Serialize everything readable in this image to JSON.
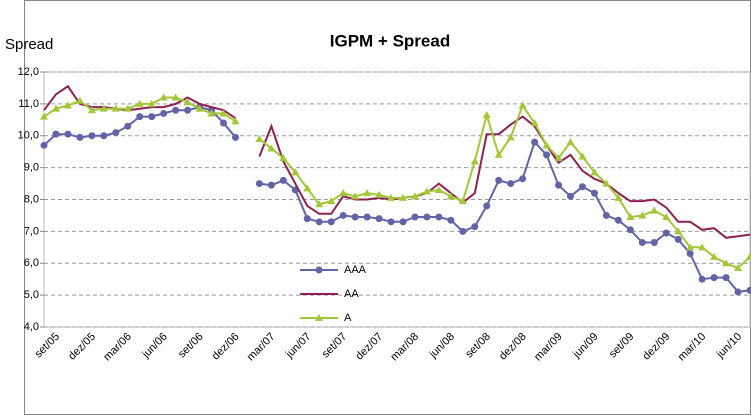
{
  "chart_data": {
    "type": "line",
    "title": "IGPM + Spread",
    "y_label": "Spread",
    "categories": [
      null,
      "set/05",
      null,
      null,
      "dez/05",
      null,
      null,
      "mar/06",
      null,
      null,
      "jun/06",
      null,
      null,
      "set/06",
      null,
      null,
      "dez/06",
      null,
      null,
      "mar/07",
      null,
      null,
      "jun/07",
      null,
      null,
      "set/07",
      null,
      null,
      "dez/07",
      null,
      null,
      "mar/08",
      null,
      null,
      "jun/08",
      null,
      null,
      "set/08",
      null,
      null,
      "dez/08",
      null,
      null,
      "mar/09",
      null,
      null,
      "jun/09",
      null,
      null,
      "set/09",
      null,
      null,
      "dez/09",
      null,
      null,
      "mar/10",
      null,
      null,
      "jun/10",
      null
    ],
    "series": [
      {
        "name": "AAA",
        "color": "#6264a7",
        "marker": "circle",
        "values": [
          9.7,
          10.05,
          10.05,
          9.95,
          10.0,
          10.0,
          10.1,
          10.3,
          10.6,
          10.6,
          10.7,
          10.8,
          10.8,
          10.9,
          10.8,
          10.4,
          9.95,
          null,
          8.5,
          8.45,
          8.6,
          8.3,
          7.4,
          7.3,
          7.3,
          7.5,
          7.45,
          7.45,
          7.4,
          7.3,
          7.3,
          7.45,
          7.45,
          7.45,
          7.35,
          7.0,
          7.15,
          7.8,
          8.6,
          8.5,
          8.65,
          9.8,
          9.4,
          8.45,
          8.1,
          8.4,
          8.2,
          7.5,
          7.35,
          7.05,
          6.65,
          6.65,
          6.95,
          6.75,
          6.3,
          5.5,
          5.55,
          5.55,
          5.1,
          5.15
        ]
      },
      {
        "name": "AA",
        "color": "#8e2151",
        "marker": "none",
        "values": [
          10.8,
          11.3,
          11.55,
          11.0,
          10.9,
          10.9,
          10.85,
          10.8,
          10.85,
          10.9,
          10.9,
          11.0,
          11.2,
          11.0,
          10.9,
          10.8,
          10.55,
          null,
          9.35,
          10.3,
          9.2,
          8.5,
          7.8,
          7.55,
          7.55,
          8.1,
          8.0,
          8.0,
          8.05,
          8.0,
          8.05,
          8.1,
          8.2,
          8.5,
          8.2,
          7.9,
          8.2,
          10.05,
          10.05,
          10.35,
          10.6,
          10.3,
          9.7,
          9.15,
          9.4,
          8.9,
          8.65,
          8.5,
          8.2,
          7.95,
          7.95,
          8.0,
          7.75,
          7.3,
          7.3,
          7.05,
          7.1,
          6.8,
          6.85,
          6.9
        ]
      },
      {
        "name": "A",
        "color": "#a4c639",
        "marker": "triangle",
        "values": [
          10.6,
          10.85,
          10.95,
          11.1,
          10.8,
          10.85,
          10.85,
          10.85,
          11.0,
          11.0,
          11.2,
          11.2,
          11.05,
          10.85,
          10.7,
          10.7,
          10.45,
          null,
          9.9,
          9.6,
          9.3,
          8.85,
          8.35,
          7.85,
          7.95,
          8.2,
          8.1,
          8.2,
          8.15,
          8.05,
          8.05,
          8.1,
          8.25,
          8.3,
          8.1,
          7.95,
          9.2,
          10.65,
          9.4,
          9.95,
          10.95,
          10.4,
          9.7,
          9.3,
          9.8,
          9.35,
          8.85,
          8.5,
          8.05,
          7.45,
          7.5,
          7.65,
          7.45,
          7.0,
          6.5,
          6.5,
          6.2,
          6.0,
          5.85,
          6.2
        ]
      }
    ],
    "ylim": [
      4,
      12
    ],
    "yticks": [
      {
        "value": 4,
        "label": "4,0"
      },
      {
        "value": 5,
        "label": "5,0"
      },
      {
        "value": 6,
        "label": "6,0"
      },
      {
        "value": 7,
        "label": "7,0"
      },
      {
        "value": 8,
        "label": "8,0"
      },
      {
        "value": 9,
        "label": "9,0"
      },
      {
        "value": 10,
        "label": "10,0"
      },
      {
        "value": 11,
        "label": "11,0"
      },
      {
        "value": 12,
        "label": "12,0"
      }
    ],
    "grid": true
  }
}
